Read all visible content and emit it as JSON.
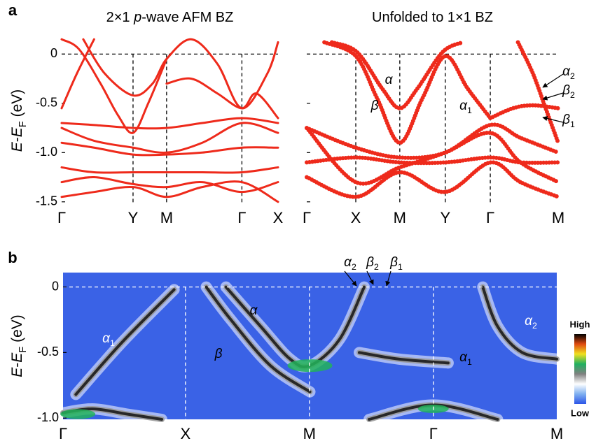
{
  "chart_data": [
    {
      "type": "line",
      "panel": "a",
      "title": [
        "2×1 ",
        "p",
        "-wave AFM BZ"
      ],
      "ylabel": [
        "E",
        "-",
        "E",
        "F",
        " (eV)"
      ],
      "xlim": [
        0,
        1
      ],
      "xticks": [
        {
          "value": 0,
          "label": "Γ"
        },
        {
          "value": 0.33,
          "label": "Y"
        },
        {
          "value": 0.485,
          "label": "M"
        },
        {
          "value": 0.833,
          "label": "Γ"
        },
        {
          "value": 1,
          "label": "X"
        }
      ],
      "ylim": [
        -1.53,
        0.18
      ],
      "yticks": [
        0,
        -0.5,
        {
          "value": -1,
          "label": "-1.0"
        },
        -1.5
      ],
      "show_ytick_labels": true,
      "style": "solid",
      "color": "#ee2a1b",
      "series": [
        {
          "x": [
            0,
            0.08,
            0.18,
            0.26,
            0.33,
            0.4,
            0.485
          ],
          "values": [
            0.15,
            0.05,
            -0.3,
            -0.62,
            -0.8,
            -0.5,
            -0.05
          ]
        },
        {
          "x": [
            0,
            0.07,
            0.15
          ],
          "values": [
            -0.55,
            -0.2,
            0.15
          ]
        },
        {
          "x": [
            0.1,
            0.2,
            0.33,
            0.42,
            0.485,
            0.6,
            0.72,
            0.833,
            0.95,
            1
          ],
          "values": [
            0.15,
            -0.2,
            -0.42,
            -0.3,
            -0.05,
            0.15,
            -0.1,
            -0.55,
            -0.2,
            0.12
          ]
        },
        {
          "x": [
            0.485,
            0.6,
            0.72,
            0.833,
            0.9,
            1
          ],
          "values": [
            -0.3,
            -0.25,
            -0.4,
            -0.55,
            -0.4,
            -0.65
          ]
        },
        {
          "x": [
            0,
            0.15,
            0.33,
            0.485,
            0.65,
            0.833,
            1
          ],
          "values": [
            -0.7,
            -0.72,
            -0.75,
            -0.75,
            -0.7,
            -0.65,
            -0.7
          ]
        },
        {
          "x": [
            0,
            0.15,
            0.33,
            0.485,
            0.65,
            0.833,
            1
          ],
          "values": [
            -0.75,
            -0.88,
            -0.95,
            -1.0,
            -0.9,
            -0.7,
            -0.8
          ]
        },
        {
          "x": [
            0,
            0.15,
            0.33,
            0.485,
            0.65,
            0.833,
            1
          ],
          "values": [
            -0.9,
            -0.95,
            -1.02,
            -1.02,
            -1.0,
            -0.95,
            -0.95
          ]
        },
        {
          "x": [
            0,
            0.15,
            0.33,
            0.485,
            0.65,
            0.833,
            1
          ],
          "values": [
            -1.15,
            -1.2,
            -1.2,
            -1.2,
            -1.2,
            -1.2,
            -1.15
          ]
        },
        {
          "x": [
            0,
            0.15,
            0.33,
            0.485,
            0.65,
            0.833,
            1
          ],
          "values": [
            -1.3,
            -1.25,
            -1.32,
            -1.35,
            -1.3,
            -1.4,
            -1.3
          ]
        },
        {
          "x": [
            0,
            0.15,
            0.33,
            0.485,
            0.65,
            0.833,
            1
          ],
          "values": [
            -1.45,
            -1.4,
            -1.35,
            -1.45,
            -1.35,
            -1.3,
            -1.5
          ]
        }
      ]
    },
    {
      "type": "line",
      "title": [
        "Unfolded to 1×1 BZ"
      ],
      "xlim": [
        0,
        1
      ],
      "xticks": [
        {
          "value": 0,
          "label": "Γ"
        },
        {
          "value": 0.195,
          "label": "X"
        },
        {
          "value": 0.37,
          "label": "M"
        },
        {
          "value": 0.551,
          "label": "Y"
        },
        {
          "value": 0.73,
          "label": "Γ"
        },
        {
          "value": 1,
          "label": "M"
        }
      ],
      "ylim": [
        -1.53,
        0.18
      ],
      "yticks": [
        0,
        -0.5,
        -1,
        -1.5
      ],
      "show_ytick_labels": false,
      "style": "dotted",
      "color": "#ee2a1b",
      "series": [
        {
          "x": [
            0.07,
            0.195,
            0.28,
            0.37,
            0.46,
            0.551,
            0.64,
            0.73
          ],
          "values": [
            0.12,
            -0.02,
            -0.45,
            -0.9,
            -0.45,
            -0.02,
            -0.35,
            -0.65
          ]
        },
        {
          "x": [
            0.1,
            0.2,
            0.3,
            0.37,
            0.44,
            0.54,
            0.62
          ],
          "values": [
            0.12,
            0.02,
            -0.35,
            -0.55,
            -0.35,
            0.02,
            0.12
          ]
        },
        {
          "x": [
            0.73,
            0.82,
            0.9,
            1
          ],
          "values": [
            -0.65,
            -0.55,
            -0.52,
            -0.55
          ]
        },
        {
          "x": [
            0.84,
            0.9,
            0.95,
            1
          ],
          "values": [
            0.12,
            -0.2,
            -0.55,
            -0.9
          ]
        },
        {
          "x": [
            0,
            0.195,
            0.37,
            0.551,
            0.73,
            0.85,
            1
          ],
          "values": [
            -0.75,
            -0.95,
            -1.05,
            -1.0,
            -0.72,
            -0.85,
            -1.0
          ]
        },
        {
          "x": [
            0,
            0.195,
            0.37,
            0.551,
            0.73,
            0.85,
            1
          ],
          "values": [
            -0.75,
            -1.3,
            -1.15,
            -1.0,
            -0.8,
            -1.1,
            -1.3
          ]
        },
        {
          "x": [
            0,
            0.195,
            0.37,
            0.551,
            0.73,
            0.85,
            1
          ],
          "values": [
            -1.1,
            -1.05,
            -1.1,
            -1.1,
            -1.05,
            -1.1,
            -1.1
          ]
        },
        {
          "x": [
            0,
            0.195,
            0.37,
            0.551,
            0.73,
            0.85,
            1
          ],
          "values": [
            -1.25,
            -1.45,
            -1.2,
            -1.4,
            -1.1,
            -1.3,
            -1.45
          ]
        }
      ],
      "annotations": [
        {
          "text": "α"
        },
        {
          "text": "β"
        },
        {
          "text": "α",
          "sub": "1"
        },
        {
          "text": "α",
          "sub": "2"
        },
        {
          "text": "β",
          "sub": "2"
        },
        {
          "text": "β",
          "sub": "1"
        }
      ]
    },
    {
      "type": "heatmap",
      "panel": "b",
      "ylabel": [
        "E",
        "-",
        "E",
        "F",
        " (eV)"
      ],
      "xlim": [
        0,
        1
      ],
      "xticks": [
        {
          "value": 0,
          "label": "Γ"
        },
        {
          "value": 0.248,
          "label": "X"
        },
        {
          "value": 0.499,
          "label": "M"
        },
        {
          "value": 0.75,
          "label": "Γ"
        },
        {
          "value": 1,
          "label": "M"
        }
      ],
      "ylim": [
        -1.01,
        0.11
      ],
      "yticks": [
        0,
        -0.5,
        {
          "value": -1,
          "label": "-1.0"
        }
      ],
      "show_ytick_labels": true,
      "background": "#3a62e6",
      "halo": "#ffffff",
      "core": "#1c1c1c",
      "hot": "#22b35a",
      "colormap": [
        "#000000",
        "#e04a10",
        "#f0e020",
        "#20b060",
        "#808080",
        "#ffffff",
        "#7fb0f0",
        "#2c55e8"
      ],
      "colorbar_labels": [
        "High",
        "Low"
      ],
      "series": [
        {
          "x": [
            0.026,
            0.12,
            0.225
          ],
          "values": [
            -0.82,
            -0.42,
            -0.02
          ]
        },
        {
          "x": [
            0,
            0.06,
            0.13,
            0.2
          ],
          "values": [
            -0.96,
            -0.93,
            -0.97,
            -1.01
          ]
        },
        {
          "x": [
            0.33,
            0.4,
            0.46,
            0.5,
            0.56,
            0.61
          ],
          "values": [
            0,
            -0.3,
            -0.55,
            -0.6,
            -0.4,
            0
          ]
        },
        {
          "x": [
            0.29,
            0.34,
            0.42,
            0.5
          ],
          "values": [
            0,
            -0.25,
            -0.6,
            -0.8
          ]
        },
        {
          "x": [
            0.85,
            0.88,
            0.93,
            1
          ],
          "values": [
            0,
            -0.3,
            -0.5,
            -0.55
          ]
        },
        {
          "x": [
            0.62,
            0.75,
            0.88
          ],
          "values": [
            -1.01,
            -0.9,
            -1.01
          ]
        },
        {
          "x": [
            0.6,
            0.68,
            0.78
          ],
          "values": [
            -0.5,
            -0.55,
            -0.58
          ]
        }
      ],
      "annotations": [
        {
          "text": "α",
          "sub": "2"
        },
        {
          "text": "β",
          "sub": "2"
        },
        {
          "text": "β",
          "sub": "1"
        },
        {
          "text": "α",
          "sub": "1"
        },
        {
          "text": "β"
        },
        {
          "text": "α"
        },
        {
          "text": "α",
          "sub": "2"
        },
        {
          "text": "α",
          "sub": "1"
        }
      ]
    }
  ]
}
